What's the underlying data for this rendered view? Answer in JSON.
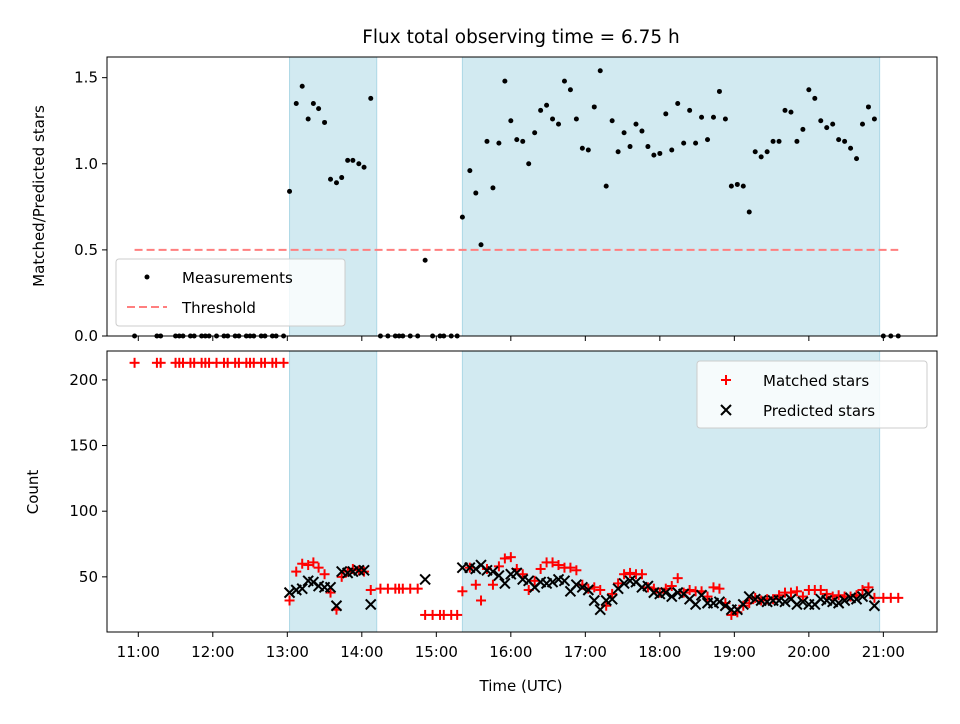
{
  "chart_data": {
    "title": "Flux total observing time = 6.75 h",
    "xlabel": "Time (UTC)",
    "x_ticks": [
      "11:00",
      "12:00",
      "13:00",
      "14:00",
      "15:00",
      "16:00",
      "17:00",
      "18:00",
      "19:00",
      "20:00",
      "21:00"
    ],
    "xlim_hours": [
      10.58,
      21.72
    ],
    "shaded_intervals_hours": [
      [
        13.03,
        14.2
      ],
      [
        15.35,
        20.95
      ]
    ],
    "colors": {
      "shade": "#add8e6",
      "matched": "#ff0000",
      "predicted": "#000000",
      "threshold": "#ff7f7f",
      "measurements": "#000000"
    },
    "top_panel": {
      "type": "scatter",
      "ylabel": "Matched/Predicted stars",
      "ylim": [
        0,
        1.62
      ],
      "y_ticks": [
        "0.0",
        "0.5",
        "1.0",
        "1.5"
      ],
      "threshold": {
        "y": 0.5,
        "x_range_hours": [
          10.95,
          21.2
        ]
      },
      "legend": {
        "placement": "lower-left",
        "items": [
          "Measurements",
          "Threshold"
        ]
      },
      "measurements": [
        [
          10.95,
          0
        ],
        [
          11.25,
          0
        ],
        [
          11.3,
          0
        ],
        [
          11.5,
          0
        ],
        [
          11.55,
          0
        ],
        [
          11.6,
          0
        ],
        [
          11.7,
          0
        ],
        [
          11.75,
          0
        ],
        [
          11.85,
          0
        ],
        [
          11.9,
          0
        ],
        [
          11.95,
          0
        ],
        [
          12.05,
          0
        ],
        [
          12.15,
          0
        ],
        [
          12.2,
          0
        ],
        [
          12.3,
          0
        ],
        [
          12.35,
          0
        ],
        [
          12.45,
          0
        ],
        [
          12.5,
          0
        ],
        [
          12.55,
          0
        ],
        [
          12.65,
          0
        ],
        [
          12.7,
          0
        ],
        [
          12.8,
          0
        ],
        [
          12.85,
          0
        ],
        [
          12.95,
          0
        ],
        [
          13.03,
          0.84
        ],
        [
          13.12,
          1.35
        ],
        [
          13.2,
          1.45
        ],
        [
          13.28,
          1.26
        ],
        [
          13.35,
          1.35
        ],
        [
          13.42,
          1.32
        ],
        [
          13.5,
          1.24
        ],
        [
          13.58,
          0.91
        ],
        [
          13.66,
          0.89
        ],
        [
          13.73,
          0.92
        ],
        [
          13.81,
          1.02
        ],
        [
          13.88,
          1.02
        ],
        [
          13.96,
          1.0
        ],
        [
          14.03,
          0.98
        ],
        [
          14.12,
          1.38
        ],
        [
          14.25,
          0
        ],
        [
          14.35,
          0
        ],
        [
          14.45,
          0
        ],
        [
          14.5,
          0
        ],
        [
          14.55,
          0
        ],
        [
          14.65,
          0
        ],
        [
          14.75,
          0
        ],
        [
          14.85,
          0.44
        ],
        [
          14.95,
          0
        ],
        [
          15.05,
          0
        ],
        [
          15.1,
          0
        ],
        [
          15.2,
          0
        ],
        [
          15.28,
          0
        ],
        [
          15.35,
          0.69
        ],
        [
          15.45,
          0.96
        ],
        [
          15.53,
          0.83
        ],
        [
          15.6,
          0.53
        ],
        [
          15.68,
          1.13
        ],
        [
          15.76,
          0.86
        ],
        [
          15.84,
          1.12
        ],
        [
          15.92,
          1.48
        ],
        [
          16.0,
          1.25
        ],
        [
          16.08,
          1.14
        ],
        [
          16.16,
          1.13
        ],
        [
          16.24,
          1.0
        ],
        [
          16.32,
          1.18
        ],
        [
          16.4,
          1.31
        ],
        [
          16.48,
          1.34
        ],
        [
          16.56,
          1.26
        ],
        [
          16.64,
          1.23
        ],
        [
          16.72,
          1.48
        ],
        [
          16.8,
          1.43
        ],
        [
          16.88,
          1.26
        ],
        [
          16.96,
          1.09
        ],
        [
          17.04,
          1.08
        ],
        [
          17.12,
          1.33
        ],
        [
          17.2,
          1.54
        ],
        [
          17.28,
          0.87
        ],
        [
          17.36,
          1.25
        ],
        [
          17.44,
          1.07
        ],
        [
          17.52,
          1.18
        ],
        [
          17.6,
          1.1
        ],
        [
          17.68,
          1.23
        ],
        [
          17.76,
          1.19
        ],
        [
          17.84,
          1.1
        ],
        [
          17.92,
          1.05
        ],
        [
          18.0,
          1.06
        ],
        [
          18.08,
          1.29
        ],
        [
          18.16,
          1.08
        ],
        [
          18.24,
          1.35
        ],
        [
          18.32,
          1.12
        ],
        [
          18.4,
          1.31
        ],
        [
          18.48,
          1.12
        ],
        [
          18.56,
          1.27
        ],
        [
          18.64,
          1.14
        ],
        [
          18.72,
          1.27
        ],
        [
          18.8,
          1.42
        ],
        [
          18.88,
          1.26
        ],
        [
          18.96,
          0.87
        ],
        [
          19.04,
          0.88
        ],
        [
          19.12,
          0.87
        ],
        [
          19.2,
          0.72
        ],
        [
          19.28,
          1.07
        ],
        [
          19.36,
          1.04
        ],
        [
          19.44,
          1.07
        ],
        [
          19.52,
          1.13
        ],
        [
          19.6,
          1.13
        ],
        [
          19.68,
          1.31
        ],
        [
          19.76,
          1.3
        ],
        [
          19.84,
          1.13
        ],
        [
          19.92,
          1.2
        ],
        [
          20.0,
          1.43
        ],
        [
          20.08,
          1.38
        ],
        [
          20.16,
          1.25
        ],
        [
          20.24,
          1.21
        ],
        [
          20.32,
          1.23
        ],
        [
          20.4,
          1.14
        ],
        [
          20.48,
          1.13
        ],
        [
          20.56,
          1.09
        ],
        [
          20.64,
          1.03
        ],
        [
          20.72,
          1.23
        ],
        [
          20.8,
          1.33
        ],
        [
          20.88,
          1.26
        ],
        [
          21.0,
          0
        ],
        [
          21.1,
          0
        ],
        [
          21.2,
          0
        ]
      ]
    },
    "bottom_panel": {
      "type": "scatter",
      "ylabel": "Count",
      "ylim": [
        8,
        222
      ],
      "y_ticks": [
        50,
        100,
        150,
        200
      ],
      "legend": {
        "placement": "top-right",
        "items": [
          "Matched stars",
          "Predicted stars"
        ]
      },
      "matched": [
        [
          10.95,
          213
        ],
        [
          11.25,
          213
        ],
        [
          11.3,
          213
        ],
        [
          11.5,
          213
        ],
        [
          11.55,
          213
        ],
        [
          11.6,
          213
        ],
        [
          11.7,
          213
        ],
        [
          11.75,
          213
        ],
        [
          11.85,
          213
        ],
        [
          11.9,
          213
        ],
        [
          11.95,
          213
        ],
        [
          12.05,
          213
        ],
        [
          12.15,
          213
        ],
        [
          12.2,
          213
        ],
        [
          12.3,
          213
        ],
        [
          12.35,
          213
        ],
        [
          12.45,
          213
        ],
        [
          12.5,
          213
        ],
        [
          12.55,
          213
        ],
        [
          12.65,
          213
        ],
        [
          12.7,
          213
        ],
        [
          12.8,
          213
        ],
        [
          12.85,
          213
        ],
        [
          12.95,
          213
        ],
        [
          13.03,
          32
        ],
        [
          13.12,
          54
        ],
        [
          13.2,
          60
        ],
        [
          13.28,
          59
        ],
        [
          13.35,
          61
        ],
        [
          13.42,
          57
        ],
        [
          13.5,
          52
        ],
        [
          13.58,
          38
        ],
        [
          13.66,
          25
        ],
        [
          13.73,
          50
        ],
        [
          13.81,
          54
        ],
        [
          13.88,
          56
        ],
        [
          13.96,
          55
        ],
        [
          14.03,
          54
        ],
        [
          14.12,
          40
        ],
        [
          14.25,
          41
        ],
        [
          14.35,
          41
        ],
        [
          14.45,
          41
        ],
        [
          14.5,
          41
        ],
        [
          14.55,
          41
        ],
        [
          14.65,
          41
        ],
        [
          14.75,
          41
        ],
        [
          14.85,
          21
        ],
        [
          14.95,
          21
        ],
        [
          15.05,
          21
        ],
        [
          15.1,
          21
        ],
        [
          15.2,
          21
        ],
        [
          15.28,
          21
        ],
        [
          15.35,
          39
        ],
        [
          15.45,
          57
        ],
        [
          15.53,
          44
        ],
        [
          15.6,
          32
        ],
        [
          15.68,
          56
        ],
        [
          15.76,
          44
        ],
        [
          15.84,
          58
        ],
        [
          15.92,
          64
        ],
        [
          16.0,
          65
        ],
        [
          16.08,
          56
        ],
        [
          16.16,
          52
        ],
        [
          16.24,
          40
        ],
        [
          16.32,
          47
        ],
        [
          16.4,
          56
        ],
        [
          16.48,
          61
        ],
        [
          16.56,
          61
        ],
        [
          16.64,
          59
        ],
        [
          16.72,
          57
        ],
        [
          16.8,
          57
        ],
        [
          16.88,
          55
        ],
        [
          16.96,
          44
        ],
        [
          17.04,
          41
        ],
        [
          17.12,
          42
        ],
        [
          17.2,
          40
        ],
        [
          17.28,
          28
        ],
        [
          17.36,
          37
        ],
        [
          17.44,
          45
        ],
        [
          17.52,
          52
        ],
        [
          17.6,
          53
        ],
        [
          17.68,
          52
        ],
        [
          17.76,
          52
        ],
        [
          17.84,
          42
        ],
        [
          17.92,
          41
        ],
        [
          18.0,
          38
        ],
        [
          18.08,
          41
        ],
        [
          18.16,
          43
        ],
        [
          18.24,
          49
        ],
        [
          18.32,
          38
        ],
        [
          18.4,
          40
        ],
        [
          18.48,
          39
        ],
        [
          18.56,
          39
        ],
        [
          18.64,
          35
        ],
        [
          18.72,
          42
        ],
        [
          18.8,
          41
        ],
        [
          18.88,
          30
        ],
        [
          18.96,
          21
        ],
        [
          19.04,
          23
        ],
        [
          19.12,
          28
        ],
        [
          19.2,
          30
        ],
        [
          19.28,
          34
        ],
        [
          19.36,
          32
        ],
        [
          19.44,
          33
        ],
        [
          19.52,
          33
        ],
        [
          19.6,
          36
        ],
        [
          19.68,
          38
        ],
        [
          19.76,
          38
        ],
        [
          19.84,
          39
        ],
        [
          19.92,
          35
        ],
        [
          20.0,
          40
        ],
        [
          20.08,
          40
        ],
        [
          20.16,
          40
        ],
        [
          20.24,
          37
        ],
        [
          20.32,
          35
        ],
        [
          20.4,
          36
        ],
        [
          20.48,
          35
        ],
        [
          20.56,
          35
        ],
        [
          20.64,
          36
        ],
        [
          20.72,
          40
        ],
        [
          20.8,
          42
        ],
        [
          20.88,
          34
        ],
        [
          21.0,
          34
        ],
        [
          21.1,
          34
        ],
        [
          21.2,
          34
        ]
      ],
      "predicted": [
        [
          13.03,
          38
        ],
        [
          13.12,
          40
        ],
        [
          13.2,
          41
        ],
        [
          13.28,
          47
        ],
        [
          13.35,
          46
        ],
        [
          13.42,
          43
        ],
        [
          13.5,
          42
        ],
        [
          13.58,
          42
        ],
        [
          13.66,
          28
        ],
        [
          13.73,
          54
        ],
        [
          13.81,
          53
        ],
        [
          13.88,
          54
        ],
        [
          13.96,
          55
        ],
        [
          14.03,
          55
        ],
        [
          14.12,
          29
        ],
        [
          14.85,
          48
        ],
        [
          15.35,
          57
        ],
        [
          15.45,
          57
        ],
        [
          15.53,
          56
        ],
        [
          15.6,
          59
        ],
        [
          15.68,
          55
        ],
        [
          15.76,
          54
        ],
        [
          15.84,
          51
        ],
        [
          15.92,
          45
        ],
        [
          16.0,
          52
        ],
        [
          16.08,
          53
        ],
        [
          16.16,
          48
        ],
        [
          16.24,
          47
        ],
        [
          16.32,
          42
        ],
        [
          16.4,
          46
        ],
        [
          16.48,
          45
        ],
        [
          16.56,
          46
        ],
        [
          16.64,
          48
        ],
        [
          16.72,
          47
        ],
        [
          16.8,
          39
        ],
        [
          16.88,
          44
        ],
        [
          16.96,
          42
        ],
        [
          17.04,
          40
        ],
        [
          17.12,
          32
        ],
        [
          17.2,
          25
        ],
        [
          17.28,
          32
        ],
        [
          17.36,
          33
        ],
        [
          17.44,
          41
        ],
        [
          17.52,
          45
        ],
        [
          17.6,
          47
        ],
        [
          17.68,
          46
        ],
        [
          17.76,
          42
        ],
        [
          17.84,
          43
        ],
        [
          17.92,
          38
        ],
        [
          18.0,
          37
        ],
        [
          18.08,
          38
        ],
        [
          18.16,
          35
        ],
        [
          18.24,
          38
        ],
        [
          18.32,
          37
        ],
        [
          18.4,
          33
        ],
        [
          18.48,
          29
        ],
        [
          18.56,
          36
        ],
        [
          18.64,
          30
        ],
        [
          18.72,
          30
        ],
        [
          18.8,
          31
        ],
        [
          18.88,
          28
        ],
        [
          18.96,
          25
        ],
        [
          19.04,
          25
        ],
        [
          19.12,
          29
        ],
        [
          19.2,
          35
        ],
        [
          19.28,
          33
        ],
        [
          19.36,
          32
        ],
        [
          19.44,
          31
        ],
        [
          19.52,
          32
        ],
        [
          19.6,
          32
        ],
        [
          19.68,
          31
        ],
        [
          19.76,
          33
        ],
        [
          19.84,
          29
        ],
        [
          19.92,
          31
        ],
        [
          20.0,
          29
        ],
        [
          20.08,
          29
        ],
        [
          20.16,
          33
        ],
        [
          20.24,
          32
        ],
        [
          20.32,
          31
        ],
        [
          20.4,
          30
        ],
        [
          20.48,
          32
        ],
        [
          20.56,
          34
        ],
        [
          20.64,
          33
        ],
        [
          20.72,
          35
        ],
        [
          20.8,
          37
        ],
        [
          20.88,
          28
        ]
      ]
    }
  }
}
